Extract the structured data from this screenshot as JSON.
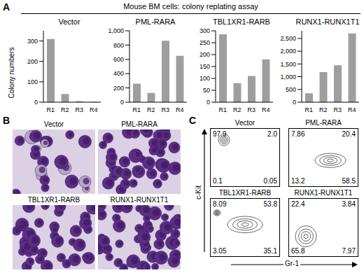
{
  "chart_data": [
    {
      "type": "bar",
      "title": "Vector",
      "categories": [
        "R1",
        "R2",
        "R3",
        "R4"
      ],
      "values": [
        310,
        40,
        5,
        2
      ],
      "color": "#9e9e9e",
      "ylim": [
        0,
        350
      ],
      "yticks": [
        0,
        100,
        200,
        300
      ]
    },
    {
      "type": "bar",
      "title": "PML-RARA",
      "categories": [
        "R1",
        "R2",
        "R3",
        "R4"
      ],
      "values": [
        260,
        130,
        860,
        650
      ],
      "color": "#9e9e9e",
      "ylim": [
        0,
        1000
      ],
      "yticks": [
        0,
        200,
        400,
        600,
        800,
        {
          "value": 1000,
          "label": "1,000"
        }
      ]
    },
    {
      "type": "bar",
      "title": "TBL1XR1-RARB",
      "categories": [
        "R1",
        "R2",
        "R3",
        "R4"
      ],
      "values": [
        285,
        80,
        110,
        180
      ],
      "color": "#9e9e9e",
      "ylim": [
        0,
        300
      ],
      "yticks": [
        0,
        50,
        100,
        150,
        200,
        250,
        300
      ]
    },
    {
      "type": "bar",
      "title": "RUNX1-RUNX1T1",
      "categories": [
        "R1",
        "R2",
        "R3",
        "R4"
      ],
      "values": [
        350,
        1180,
        1450,
        2700
      ],
      "color": "#9e9e9e",
      "ylim": [
        0,
        2800
      ],
      "yticks": [
        0,
        500,
        {
          "value": 1000,
          "label": "1,000"
        },
        {
          "value": 1500,
          "label": "1,500"
        },
        {
          "value": 2000,
          "label": "2,000"
        },
        {
          "value": 2500,
          "label": "2,500"
        }
      ]
    }
  ],
  "figure": {
    "panel_labels": [
      "A",
      "B",
      "C"
    ],
    "panel_a": {
      "title": "Mouse BM cells: colony replating assay",
      "y_label": "Colony numbers"
    },
    "panel_b": {
      "labels": [
        "Vector",
        "PML-RARA",
        "TBL1XR1-RARB",
        "RUNX1-RUNX1T1"
      ]
    },
    "panel_c": {
      "x_label": "Gr-1",
      "y_label": "c-Kit",
      "plots": [
        {
          "label": "Vector",
          "quadrants": {
            "upper_left": 97.9,
            "upper_right": {
              "value": 2.0,
              "label": "2.0"
            },
            "lower_left": 0.1,
            "lower_right": 0.05
          }
        },
        {
          "label": "PML-RARA",
          "quadrants": {
            "upper_left": 7.86,
            "upper_right": 20.4,
            "lower_left": 13.2,
            "lower_right": 58.5
          }
        },
        {
          "label": "TBL1XR1-RARB",
          "quadrants": {
            "upper_left": 8.09,
            "upper_right": 53.8,
            "lower_left": 3.05,
            "lower_right": 35.1
          }
        },
        {
          "label": "RUNX1-RUNX1T1",
          "quadrants": {
            "upper_left": 22.4,
            "upper_right": 3.84,
            "lower_left": 65.8,
            "lower_right": 7.97
          }
        }
      ]
    }
  }
}
